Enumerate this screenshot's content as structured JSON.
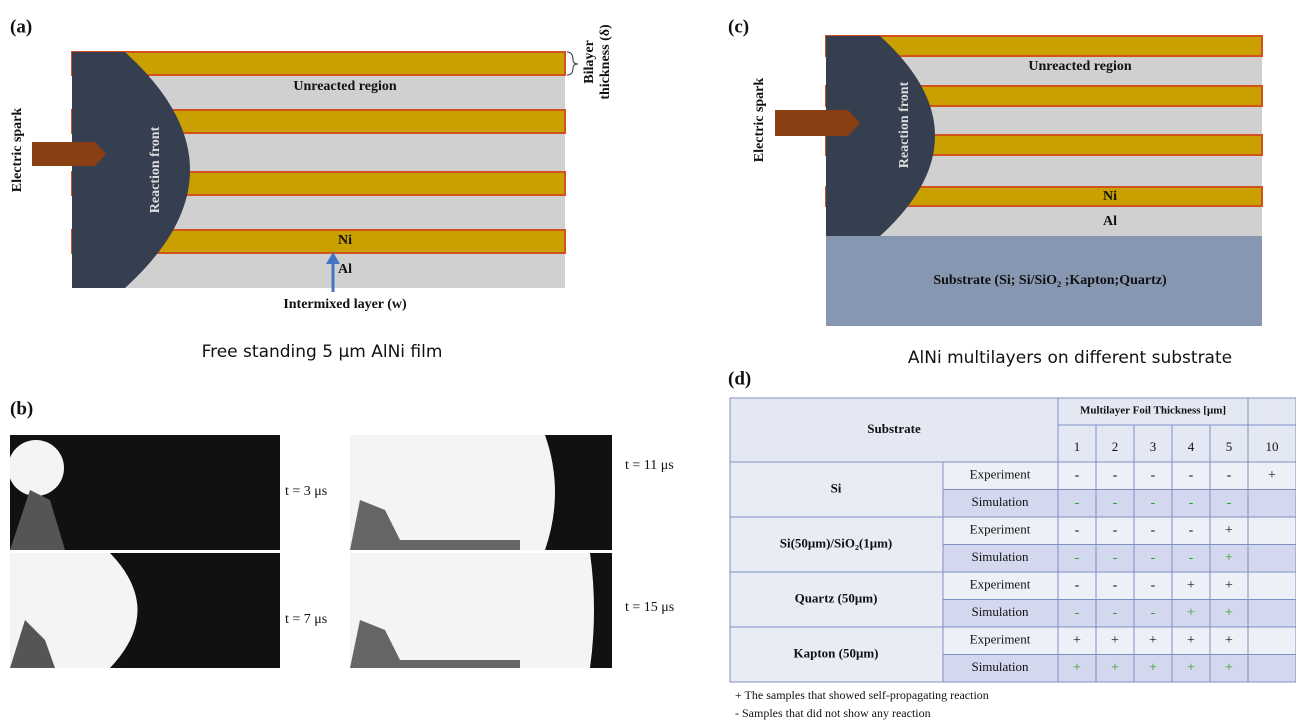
{
  "panel_a": {
    "label": "(a)",
    "unreacted": "Unreacted region",
    "reaction_front": "Reaction front",
    "electric_spark": "Electric spark",
    "ni": "Ni",
    "al": "Al",
    "intermixed": "Intermixed layer (w)",
    "bilayer": [
      "Bilayer",
      "thickness (δ)"
    ],
    "caption": "Free standing 5 µm AlNi film"
  },
  "panel_b": {
    "label": "(b)",
    "frames": [
      "t = 3 μs",
      "t = 7 μs",
      "t = 11 μs",
      "t = 15 μs"
    ]
  },
  "panel_c": {
    "label": "(c)",
    "unreacted": "Unreacted region",
    "reaction_front": "Reaction front",
    "electric_spark": "Electric spark",
    "ni": "Ni",
    "al": "Al",
    "substrate": "Substrate (Si; Si/SiO₂ ;Kapton;Quartz)",
    "caption": "AlNi multilayers on different substrate"
  },
  "panel_d": {
    "label": "(d)",
    "table": {
      "substrate_header": "Substrate",
      "thickness_header": "Multilayer Foil Thickness [μm]",
      "thicknesses": [
        1,
        2,
        3,
        4,
        5,
        10
      ],
      "rows": [
        {
          "substrate": "Si",
          "experiment": {
            "label": "Experiment",
            "cells": [
              "-",
              "-",
              "-",
              "-",
              "-",
              "+"
            ]
          },
          "simulation": {
            "label": "Simulation",
            "cells": [
              "-",
              "-",
              "-",
              "-",
              "-"
            ]
          }
        },
        {
          "substrate": "Si(50μm)/SiO₂(1μm)",
          "experiment": {
            "label": "Experiment",
            "cells": [
              "-",
              "-",
              "-",
              "-",
              "+"
            ]
          },
          "simulation": {
            "label": "Simulation",
            "cells": [
              "-",
              "-",
              "-",
              "-",
              "+"
            ]
          }
        },
        {
          "substrate": "Quartz  (50μm)",
          "experiment": {
            "label": "Experiment",
            "cells": [
              "-",
              "-",
              "-",
              "+",
              "+"
            ]
          },
          "simulation": {
            "label": "Simulation",
            "cells": [
              "-",
              "-",
              "-",
              "+",
              "+"
            ]
          }
        },
        {
          "substrate": "Kapton  (50μm)",
          "experiment": {
            "label": "Experiment",
            "cells": [
              "+",
              "+",
              "+",
              "+",
              "+"
            ]
          },
          "simulation": {
            "label": "Simulation",
            "cells": [
              "+",
              "+",
              "+",
              "+",
              "+"
            ]
          }
        }
      ]
    },
    "legend": [
      "+ The samples that showed self-propagating reaction",
      "- Samples that did not show any reaction"
    ]
  }
}
